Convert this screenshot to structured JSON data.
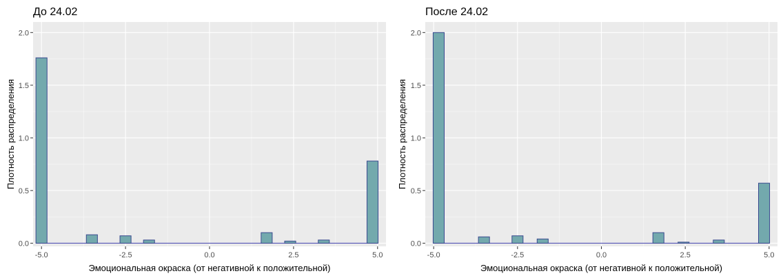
{
  "colors": {
    "panel_background": "#ebebeb",
    "grid_major": "#ffffff",
    "bar_fill": "#73a9ad",
    "bar_outline": "#3a4a8f",
    "baseline": "#3d3dab",
    "text": "#000000",
    "tick_text": "#4d4d4d"
  },
  "chart_data": [
    {
      "type": "bar",
      "subtype": "histogram",
      "title": "До 24.02",
      "xlabel": "Эмоциональная окраска (от негативной к положительной)",
      "ylabel": "Плотность распределения",
      "xlim": [
        -5.25,
        5.25
      ],
      "ylim": [
        -0.03,
        2.1
      ],
      "bin_width": 0.33,
      "x_ticks": [
        -5,
        -2.5,
        0,
        2.5,
        5
      ],
      "x_tick_labels": [
        "-5.0",
        "-2.5",
        "0.0",
        "2.5",
        "5.0"
      ],
      "y_ticks": [
        0,
        0.5,
        1,
        1.5,
        2
      ],
      "y_tick_labels": [
        "0.0",
        "0.5",
        "1.0",
        "1.5",
        "2.0"
      ],
      "grid": true,
      "legend": "none",
      "bins": [
        {
          "x": -5.0,
          "value": 1.76
        },
        {
          "x": -3.5,
          "value": 0.08
        },
        {
          "x": -2.5,
          "value": 0.07
        },
        {
          "x": -1.8,
          "value": 0.03
        },
        {
          "x": 1.7,
          "value": 0.1
        },
        {
          "x": 2.4,
          "value": 0.02
        },
        {
          "x": 3.4,
          "value": 0.03
        },
        {
          "x": 4.85,
          "value": 0.78
        }
      ]
    },
    {
      "type": "bar",
      "subtype": "histogram",
      "title": "После 24.02",
      "xlabel": "Эмоциональная окраска (от негативной к положительной)",
      "ylabel": "Плотность распределения",
      "xlim": [
        -5.25,
        5.25
      ],
      "ylim": [
        -0.03,
        2.1
      ],
      "bin_width": 0.33,
      "x_ticks": [
        -5,
        -2.5,
        0,
        2.5,
        5
      ],
      "x_tick_labels": [
        "-5.0",
        "-2.5",
        "0.0",
        "2.5",
        "5.0"
      ],
      "y_ticks": [
        0,
        0.5,
        1,
        1.5,
        2
      ],
      "y_tick_labels": [
        "0.0",
        "0.5",
        "1.0",
        "1.5",
        "2.0"
      ],
      "grid": true,
      "legend": "none",
      "bins": [
        {
          "x": -4.85,
          "value": 2.0
        },
        {
          "x": -3.5,
          "value": 0.06
        },
        {
          "x": -2.5,
          "value": 0.07
        },
        {
          "x": -1.75,
          "value": 0.04
        },
        {
          "x": 1.7,
          "value": 0.1
        },
        {
          "x": 2.45,
          "value": 0.01
        },
        {
          "x": 3.5,
          "value": 0.03
        },
        {
          "x": 4.85,
          "value": 0.57
        }
      ]
    }
  ]
}
